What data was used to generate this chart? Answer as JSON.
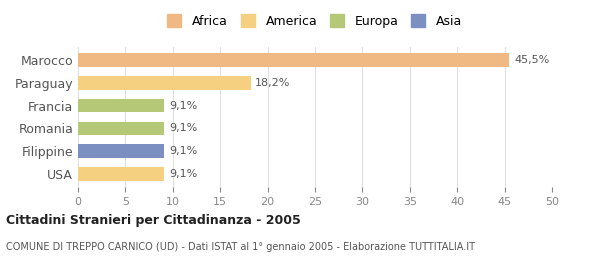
{
  "categories": [
    "Marocco",
    "Paraguay",
    "Francia",
    "Romania",
    "Filippine",
    "USA"
  ],
  "values": [
    45.5,
    18.2,
    9.1,
    9.1,
    9.1,
    9.1
  ],
  "labels": [
    "45,5%",
    "18,2%",
    "9,1%",
    "9,1%",
    "9,1%",
    "9,1%"
  ],
  "bar_colors": [
    "#f0b984",
    "#f5d080",
    "#b5c878",
    "#b5c878",
    "#7b8fc0",
    "#f5d080"
  ],
  "legend_items": [
    {
      "label": "Africa",
      "color": "#f0b984"
    },
    {
      "label": "America",
      "color": "#f5d080"
    },
    {
      "label": "Europa",
      "color": "#b5c878"
    },
    {
      "label": "Asia",
      "color": "#7b8fc0"
    }
  ],
  "xlim": [
    0,
    50
  ],
  "xticks": [
    0,
    5,
    10,
    15,
    20,
    25,
    30,
    35,
    40,
    45,
    50
  ],
  "title_bold": "Cittadini Stranieri per Cittadinanza - 2005",
  "subtitle": "COMUNE DI TREPPO CARNICO (UD) - Dati ISTAT al 1° gennaio 2005 - Elaborazione TUTTITALIA.IT",
  "background_color": "#ffffff",
  "grid_color": "#dddddd"
}
